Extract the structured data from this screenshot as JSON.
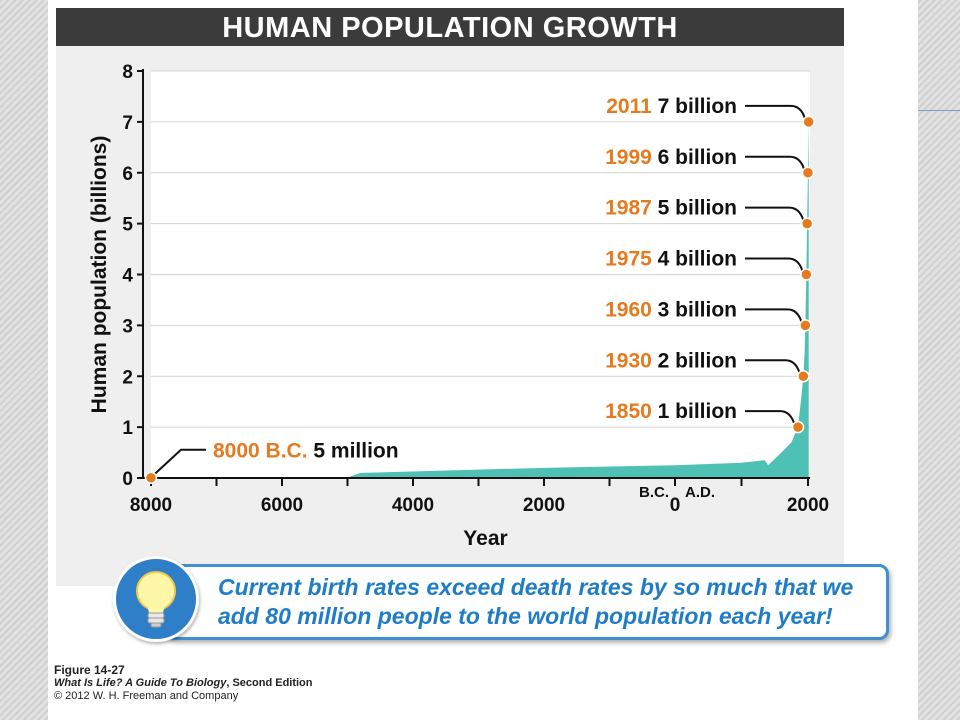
{
  "title": "HUMAN POPULATION GROWTH",
  "chart_data": {
    "type": "area",
    "title": "HUMAN POPULATION GROWTH",
    "xlabel": "Year",
    "ylabel": "Human population (billions)",
    "xlim": [
      -8000,
      2011
    ],
    "ylim": [
      0,
      8
    ],
    "x_ticks": [
      -8000,
      -6000,
      -4000,
      -2000,
      0,
      2000
    ],
    "x_tick_labels": [
      "8000",
      "6000",
      "4000",
      "2000",
      "0",
      "2000"
    ],
    "y_ticks": [
      0,
      1,
      2,
      3,
      4,
      5,
      6,
      7,
      8
    ],
    "y_tick_labels": [
      "0",
      "1",
      "2",
      "3",
      "4",
      "5",
      "6",
      "7",
      "8"
    ],
    "era_labels": [
      "B.C.",
      "A.D."
    ],
    "grid": true,
    "series": [
      {
        "x": [
          -8000,
          -5000,
          -4800,
          -2000,
          0,
          1000,
          1350,
          1400,
          1600,
          1750,
          1850,
          1900,
          1930,
          1950,
          1960,
          1975,
          1987,
          1999,
          2011
        ],
        "y": [
          0.005,
          0.01,
          0.1,
          0.2,
          0.25,
          0.3,
          0.35,
          0.25,
          0.5,
          0.7,
          1,
          1.6,
          2,
          2.5,
          3,
          4,
          5,
          6,
          7
        ]
      }
    ],
    "annotations": [
      {
        "year_label": "8000 B.C.",
        "value_label": "5 million",
        "x": -8000,
        "y": 0.005
      },
      {
        "year_label": "1850",
        "value_label": "1 billion",
        "x": 1850,
        "y": 1
      },
      {
        "year_label": "1930",
        "value_label": "2 billion",
        "x": 1930,
        "y": 2
      },
      {
        "year_label": "1960",
        "value_label": "3 billion",
        "x": 1960,
        "y": 3
      },
      {
        "year_label": "1975",
        "value_label": "4 billion",
        "x": 1975,
        "y": 4
      },
      {
        "year_label": "1987",
        "value_label": "5 billion",
        "x": 1987,
        "y": 5
      },
      {
        "year_label": "1999",
        "value_label": "6 billion",
        "x": 1999,
        "y": 6
      },
      {
        "year_label": "2011",
        "value_label": "7 billion",
        "x": 2011,
        "y": 7
      }
    ],
    "colors": {
      "area": "#4fc1b4",
      "marker": "#e57a1e",
      "year_text": "#e57a1e"
    }
  },
  "callout": {
    "icon": "lightbulb-icon",
    "text": "Current birth rates exceed death rates by so much that we add 80 million people to the world population each year!"
  },
  "caption": {
    "figure": "Figure 14-27",
    "book": "What Is Life? A Guide To Biology",
    "edition": ", Second Edition",
    "copyright": "© 2012 W. H. Freeman and Company"
  }
}
